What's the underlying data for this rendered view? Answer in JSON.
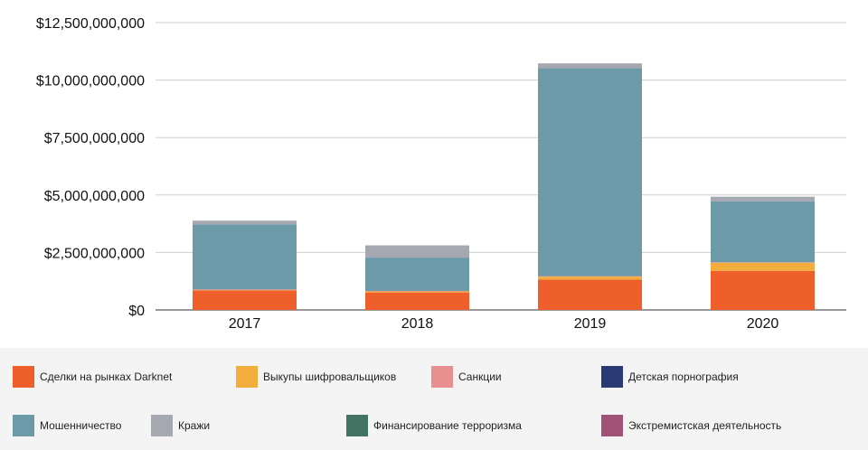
{
  "chart_data": {
    "type": "bar",
    "stacked": true,
    "categories": [
      "2017",
      "2018",
      "2019",
      "2020"
    ],
    "ylim": [
      0,
      12500000000
    ],
    "yticks": [
      0,
      2500000000,
      5000000000,
      7500000000,
      10000000000,
      12500000000
    ],
    "ytick_labels": [
      "$0",
      "$2,500,000,000",
      "$5,000,000,000",
      "$7,500,000,000",
      "$10,000,000,000",
      "$12,500,000,000"
    ],
    "grid": true,
    "legend_position": "bottom",
    "series": [
      {
        "name": "Сделки на рынках Darknet",
        "color": "#ee5f2b",
        "values": [
          850000000,
          760000000,
          1320000000,
          1700000000
        ]
      },
      {
        "name": "Выкупы шифровальщиков",
        "color": "#f2ad3c",
        "values": [
          15000000,
          45000000,
          130000000,
          350000000
        ]
      },
      {
        "name": "Санкции",
        "color": "#e8908f",
        "values": [
          25000000,
          20000000,
          20000000,
          20000000
        ]
      },
      {
        "name": "Детская порнография",
        "color": "#2b3a72",
        "values": [
          2000000,
          2000000,
          3000000,
          3000000
        ]
      },
      {
        "name": "Мошенничество",
        "color": "#6c9aa8",
        "values": [
          2830000000,
          1450000000,
          9040000000,
          2650000000
        ]
      },
      {
        "name": "Кражи",
        "color": "#a5a8b1",
        "values": [
          160000000,
          530000000,
          210000000,
          200000000
        ]
      },
      {
        "name": "Финансирование терроризма",
        "color": "#437363",
        "values": [
          1000000,
          1000000,
          1000000,
          1000000
        ]
      },
      {
        "name": "Экстремистская деятельность",
        "color": "#a05278",
        "values": [
          1000000,
          1000000,
          1000000,
          1000000
        ]
      }
    ]
  },
  "legend": [
    {
      "label": "Сделки на рынках Darknet",
      "color": "#ee5f2b"
    },
    {
      "label": "Выкупы шифровальщиков",
      "color": "#f2ad3c"
    },
    {
      "label": "Санкции",
      "color": "#e8908f"
    },
    {
      "label": "Детская порнография",
      "color": "#2b3a72"
    },
    {
      "label": "Мошенничество",
      "color": "#6c9aa8"
    },
    {
      "label": "Кражи",
      "color": "#a5a8b1"
    },
    {
      "label": "Финансирование терроризма",
      "color": "#437363"
    },
    {
      "label": "Экстремистская деятельность",
      "color": "#a05278"
    }
  ]
}
